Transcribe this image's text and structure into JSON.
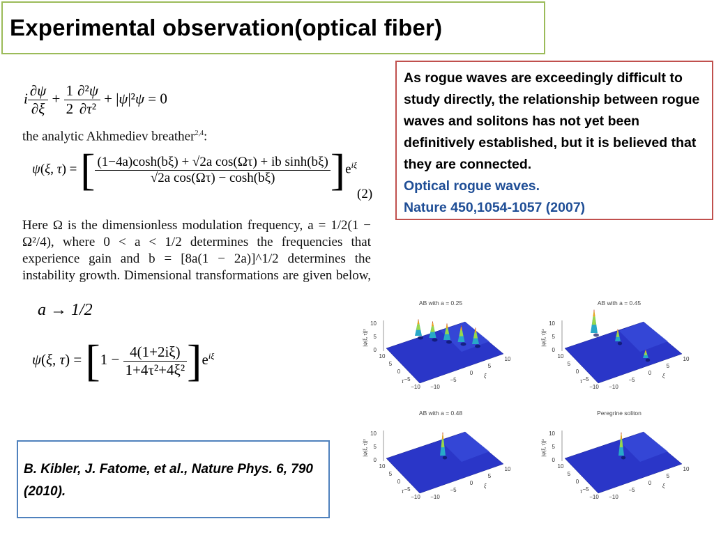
{
  "slide": {
    "title": "Experimental observation(optical fiber)"
  },
  "equations": {
    "nls": "∂ψ/∂ξ + ½ ∂²ψ/∂τ² + |ψ|²ψ = 0",
    "breather_intro": "the analytic Akhmediev breather",
    "breather_refs": "2,4",
    "ab_numerator": "(1−4a)cosh(bξ) + √2a cos(Ωτ) + ib sinh(bξ)",
    "ab_denominator": "√2a cos(Ωτ) − cosh(bξ)",
    "eq_number": "(2)",
    "limit": "a → 1/2",
    "peregrine_numerator": "4(1+2iξ)",
    "peregrine_denominator": "1+4τ²+4ξ²",
    "paragraph": "Here Ω is the dimensionless modulation frequency, a = 1/2(1 − Ω²/4), where 0 < a < 1/2 determines the frequencies that experience gain and b = [8a(1 − 2a)]^1/2 determines the instability growth. Dimensional transformations are given below, and"
  },
  "quote": {
    "text": "As rogue waves are exceedingly difficult to study directly, the relationship between rogue waves and solitons has not yet been definitively established, but it is believed that they are connected.",
    "ref_title": "Optical rogue waves.",
    "ref_citation": "Nature 450,1054-1057 (2007)"
  },
  "reference": {
    "text": "B. Kibler, J. Fatome, et al., Nature Phys. 6, 790 (2010)."
  },
  "plots": [
    {
      "title": "AB with a = 0.25",
      "zlabel": "|ψ(ξ, τ)|²",
      "xlabel": "τ",
      "ylabel": "ξ",
      "a": 0.25
    },
    {
      "title": "AB with a = 0.45",
      "zlabel": "|ψ(ξ, τ)|²",
      "xlabel": "τ",
      "ylabel": "ξ",
      "a": 0.45
    },
    {
      "title": "AB with a = 0.48",
      "zlabel": "|ψ(ξ, τ)|²",
      "xlabel": "τ",
      "ylabel": "ξ",
      "a": 0.48
    },
    {
      "title": "Peregrine soliton",
      "zlabel": "|ψ(ξ, τ)|²",
      "xlabel": "τ",
      "ylabel": "ξ",
      "a": 0.5
    }
  ],
  "plot_ticks": {
    "z": [
      "10",
      "5",
      "0"
    ],
    "tau": [
      "10",
      "5",
      "0",
      "−5",
      "−10"
    ],
    "xi": [
      "10",
      "5",
      "0",
      "−5",
      "−10"
    ]
  },
  "colors": {
    "title_border": "#9bbb59",
    "quote_border": "#c0504d",
    "ref_border": "#4f81bd",
    "ref_text": "#1f4e96",
    "surface": "#2a36c8"
  }
}
